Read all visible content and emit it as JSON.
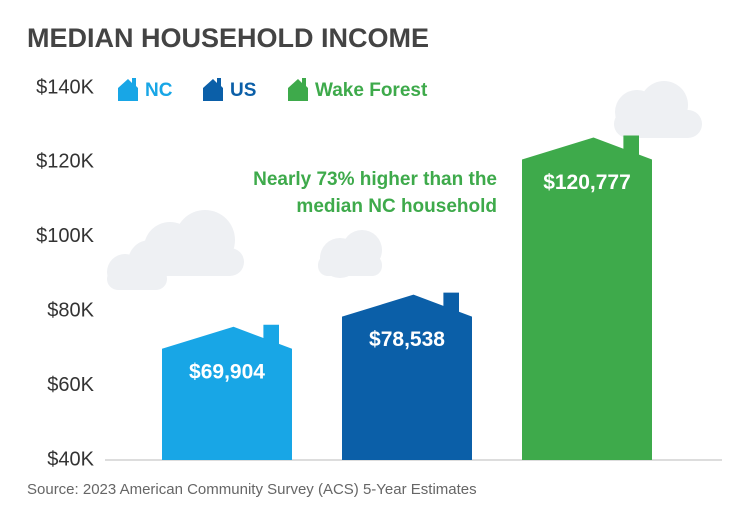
{
  "chart_data": {
    "type": "bar",
    "title": "MEDIAN HOUSEHOLD INCOME",
    "categories": [
      "NC",
      "US",
      "Wake Forest"
    ],
    "values": [
      69904,
      78538,
      120777
    ],
    "value_labels": [
      "$69,904",
      "$78,538",
      "$120,777"
    ],
    "colors": [
      "#18a6e6",
      "#0b5fa8",
      "#3eaa4b"
    ],
    "ylim": [
      40000,
      140000
    ],
    "yticks": [
      {
        "value": 40000,
        "label": "$40K"
      },
      {
        "value": 60000,
        "label": "$60K"
      },
      {
        "value": 80000,
        "label": "$80K"
      },
      {
        "value": 100000,
        "label": "$100K"
      },
      {
        "value": 120000,
        "label": "$120K"
      },
      {
        "value": 140000,
        "label": "$140K"
      }
    ],
    "annotation": [
      "Nearly 73% higher than the",
      "median NC household"
    ],
    "source": "Source: 2023 American Community Survey (ACS) 5-Year Estimates"
  }
}
